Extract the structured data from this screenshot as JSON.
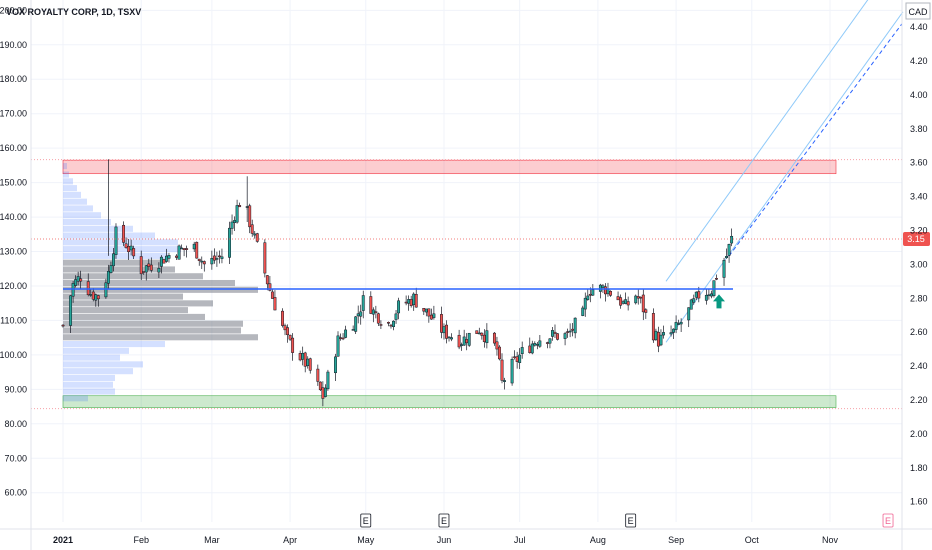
{
  "chart_data": {
    "type": "candlestick",
    "title": "VOX ROYALTY CORP, 1D, TSXV",
    "currency": "CAD",
    "last_price": "3.15",
    "left_axis": {
      "ticks": [
        "60.00",
        "70.00",
        "80.00",
        "90.00",
        "100.00",
        "110.00",
        "120.00",
        "130.00",
        "140.00",
        "150.00",
        "160.00",
        "170.00",
        "180.00",
        "190.00",
        "200.00"
      ],
      "range": [
        51.5,
        203
      ]
    },
    "right_axis": {
      "ticks": [
        "1.60",
        "1.80",
        "2.00",
        "2.20",
        "2.40",
        "2.60",
        "2.80",
        "3.00",
        "3.20",
        "3.40",
        "3.60",
        "3.80",
        "4.00",
        "4.20",
        "4.40"
      ],
      "range": [
        1.48,
        4.56
      ]
    },
    "x_ticks": [
      "2021",
      "Feb",
      "Mar",
      "Apr",
      "May",
      "Jun",
      "Jul",
      "Aug",
      "Sep",
      "Oct",
      "Nov"
    ],
    "earnings_marker": "E",
    "resistance_zone": [
      3.535,
      3.615
    ],
    "support_zone": [
      2.155,
      2.225
    ],
    "support_resistance_line": 2.855,
    "entry_arrow_price": 2.77,
    "grid": true,
    "price_series_anchors": [
      {
        "date": "2021-01-01",
        "price": 2.64
      },
      {
        "date": "2021-01-05",
        "price": 2.88
      },
      {
        "date": "2021-01-08",
        "price": 2.93
      },
      {
        "date": "2021-01-12",
        "price": 2.83
      },
      {
        "date": "2021-01-15",
        "price": 2.81
      },
      {
        "date": "2021-01-19",
        "price": 2.95
      },
      {
        "date": "2021-01-22",
        "price": 3.18
      },
      {
        "date": "2021-01-26",
        "price": 3.12
      },
      {
        "date": "2021-02-01",
        "price": 2.97
      },
      {
        "date": "2021-02-08",
        "price": 3.02
      },
      {
        "date": "2021-02-15",
        "price": 3.08
      },
      {
        "date": "2021-02-22",
        "price": 3.1
      },
      {
        "date": "2021-02-26",
        "price": 3.0
      },
      {
        "date": "2021-03-05",
        "price": 3.05
      },
      {
        "date": "2021-03-10",
        "price": 3.3
      },
      {
        "date": "2021-03-13",
        "price": 3.4
      },
      {
        "date": "2021-03-18",
        "price": 3.15
      },
      {
        "date": "2021-03-22",
        "price": 2.95
      },
      {
        "date": "2021-03-24",
        "price": 2.85
      },
      {
        "date": "2021-03-31",
        "price": 2.55
      },
      {
        "date": "2021-04-08",
        "price": 2.4
      },
      {
        "date": "2021-04-14",
        "price": 2.22
      },
      {
        "date": "2021-04-20",
        "price": 2.55
      },
      {
        "date": "2021-04-27",
        "price": 2.68
      },
      {
        "date": "2021-05-01",
        "price": 2.82
      },
      {
        "date": "2021-05-04",
        "price": 2.72
      },
      {
        "date": "2021-05-10",
        "price": 2.65
      },
      {
        "date": "2021-05-14",
        "price": 2.75
      },
      {
        "date": "2021-05-20",
        "price": 2.8
      },
      {
        "date": "2021-05-26",
        "price": 2.7
      },
      {
        "date": "2021-06-01",
        "price": 2.6
      },
      {
        "date": "2021-06-08",
        "price": 2.55
      },
      {
        "date": "2021-06-15",
        "price": 2.62
      },
      {
        "date": "2021-06-22",
        "price": 2.5
      },
      {
        "date": "2021-06-24",
        "price": 2.3
      },
      {
        "date": "2021-06-28",
        "price": 2.4
      },
      {
        "date": "2021-07-02",
        "price": 2.48
      },
      {
        "date": "2021-07-08",
        "price": 2.56
      },
      {
        "date": "2021-07-14",
        "price": 2.58
      },
      {
        "date": "2021-07-20",
        "price": 2.58
      },
      {
        "date": "2021-07-26",
        "price": 2.7
      },
      {
        "date": "2021-07-28",
        "price": 2.85
      },
      {
        "date": "2021-08-04",
        "price": 2.86
      },
      {
        "date": "2021-08-09",
        "price": 2.8
      },
      {
        "date": "2021-08-12",
        "price": 2.75
      },
      {
        "date": "2021-08-16",
        "price": 2.82
      },
      {
        "date": "2021-08-18",
        "price": 2.78
      },
      {
        "date": "2021-08-22",
        "price": 2.62
      },
      {
        "date": "2021-08-25",
        "price": 2.55
      },
      {
        "date": "2021-08-31",
        "price": 2.6
      },
      {
        "date": "2021-09-05",
        "price": 2.7
      },
      {
        "date": "2021-09-10",
        "price": 2.82
      },
      {
        "date": "2021-09-15",
        "price": 2.85
      },
      {
        "date": "2021-09-18",
        "price": 2.98
      },
      {
        "date": "2021-09-21",
        "price": 3.05
      },
      {
        "date": "2021-09-23",
        "price": 3.15
      }
    ]
  }
}
